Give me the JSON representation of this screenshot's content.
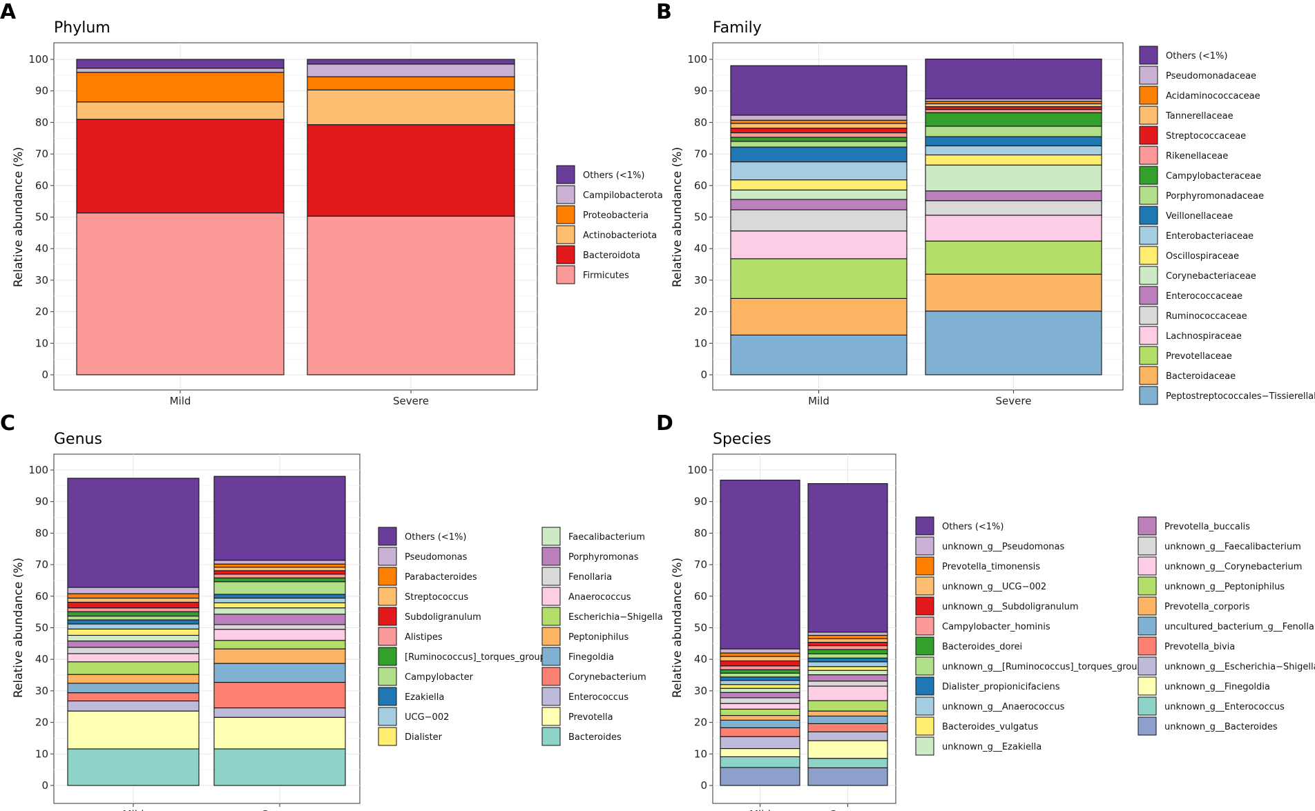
{
  "chart_data": [
    {
      "letter": "A",
      "title": "Phylum",
      "type": "bar",
      "stacked": true,
      "ylabel": "Relative abundance (%)",
      "xlabel": "",
      "ylim": [
        0,
        100
      ],
      "yticks": [
        0,
        10,
        20,
        30,
        40,
        50,
        60,
        70,
        80,
        90,
        100
      ],
      "categories": [
        "Mild",
        "Severe"
      ],
      "legend_columns": 1,
      "series": [
        {
          "name": "Firmicutes",
          "color": "#FB9A99",
          "values": [
            51.3,
            50.3
          ]
        },
        {
          "name": "Bacteroidota",
          "color": "#E31A1C",
          "values": [
            29.7,
            29.0
          ]
        },
        {
          "name": "Actinobacteriota",
          "color": "#FDBF6F",
          "values": [
            5.5,
            11.0
          ]
        },
        {
          "name": "Proteobacteria",
          "color": "#FF7F00",
          "values": [
            9.4,
            4.2
          ]
        },
        {
          "name": "Campilobacterota",
          "color": "#CAB2D6",
          "values": [
            1.3,
            4.0
          ]
        },
        {
          "name": "Others (<1%)",
          "color": "#6A3D9A",
          "values": [
            2.8,
            1.5
          ]
        }
      ]
    },
    {
      "letter": "B",
      "title": "Family",
      "type": "bar",
      "stacked": true,
      "ylabel": "Relative abundance (%)",
      "xlabel": "",
      "ylim": [
        0,
        100
      ],
      "yticks": [
        0,
        10,
        20,
        30,
        40,
        50,
        60,
        70,
        80,
        90,
        100
      ],
      "categories": [
        "Mild",
        "Severe"
      ],
      "legend_columns": 1,
      "series": [
        {
          "name": "Peptostreptococcales−Tissierellales",
          "color": "#80B1D3",
          "values": [
            12.6,
            20.2
          ]
        },
        {
          "name": "Bacteroidaceae",
          "color": "#FDB462",
          "values": [
            11.6,
            11.7
          ]
        },
        {
          "name": "Prevotellaceae",
          "color": "#B3DE69",
          "values": [
            12.6,
            10.5
          ]
        },
        {
          "name": "Lachnospiraceae",
          "color": "#FCCDE5",
          "values": [
            8.8,
            8.2
          ]
        },
        {
          "name": "Ruminococcaceae",
          "color": "#D9D9D9",
          "values": [
            6.7,
            4.6
          ]
        },
        {
          "name": "Enterococcaceae",
          "color": "#BC80BD",
          "values": [
            3.3,
            3.1
          ]
        },
        {
          "name": "Corynebacteriaceae",
          "color": "#CCEBC5",
          "values": [
            3.0,
            8.2
          ]
        },
        {
          "name": "Oscillospiraceae",
          "color": "#FFED6F",
          "values": [
            3.2,
            3.2
          ]
        },
        {
          "name": "Enterobacteriaceae",
          "color": "#A6CEE3",
          "values": [
            5.7,
            2.9
          ]
        },
        {
          "name": "Veillonellaceae",
          "color": "#1F78B4",
          "values": [
            4.7,
            2.9
          ]
        },
        {
          "name": "Porphyromonadaceae",
          "color": "#B2DF8A",
          "values": [
            1.8,
            3.3
          ]
        },
        {
          "name": "Campylobacteraceae",
          "color": "#33A02C",
          "values": [
            1.3,
            4.3
          ]
        },
        {
          "name": "Rikenellaceae",
          "color": "#FB9A99",
          "values": [
            1.4,
            1.0
          ]
        },
        {
          "name": "Streptococcaceae",
          "color": "#E31A1C",
          "values": [
            1.5,
            0.9
          ]
        },
        {
          "name": "Tannerellaceae",
          "color": "#FDBF6F",
          "values": [
            1.5,
            0.9
          ]
        },
        {
          "name": "Acidaminococcaceae",
          "color": "#FF7F00",
          "values": [
            1.0,
            0.8
          ]
        },
        {
          "name": "Pseudomonadaceae",
          "color": "#CAB2D6",
          "values": [
            1.6,
            0.8
          ]
        },
        {
          "name": "Others (<1%)",
          "color": "#6A3D9A",
          "values": [
            15.7,
            12.6
          ]
        }
      ]
    },
    {
      "letter": "C",
      "title": "Genus",
      "type": "bar",
      "stacked": true,
      "ylabel": "Relative abundance (%)",
      "xlabel": "",
      "ylim": [
        0,
        100
      ],
      "yticks": [
        0,
        10,
        20,
        30,
        40,
        50,
        60,
        70,
        80,
        90,
        100
      ],
      "categories": [
        "Mild",
        "Severe"
      ],
      "legend_columns": 2,
      "series": [
        {
          "name": "Bacteroides",
          "color": "#8DD3C7",
          "values": [
            11.6,
            11.6
          ]
        },
        {
          "name": "Prevotella",
          "color": "#FFFFB3",
          "values": [
            12.0,
            10.0
          ]
        },
        {
          "name": "Enterococcus",
          "color": "#BEBADA",
          "values": [
            3.2,
            3.0
          ]
        },
        {
          "name": "Corynebacterium",
          "color": "#FB8072",
          "values": [
            2.6,
            8.1
          ]
        },
        {
          "name": "Finegoldia",
          "color": "#80B1D3",
          "values": [
            3.0,
            6.0
          ]
        },
        {
          "name": "Peptoniphilus",
          "color": "#FDB462",
          "values": [
            2.8,
            4.6
          ]
        },
        {
          "name": "Escherichia−Shigella",
          "color": "#B3DE69",
          "values": [
            4.0,
            2.7
          ]
        },
        {
          "name": "Anaerococcus",
          "color": "#FCCDE5",
          "values": [
            2.6,
            3.5
          ]
        },
        {
          "name": "Fenollaria",
          "color": "#D9D9D9",
          "values": [
            2.0,
            1.5
          ]
        },
        {
          "name": "Porphyromonas",
          "color": "#BC80BD",
          "values": [
            2.0,
            3.3
          ]
        },
        {
          "name": "Faecalibacterium",
          "color": "#CCEBC5",
          "values": [
            1.8,
            2.0
          ]
        },
        {
          "name": "Dialister",
          "color": "#FFED6F",
          "values": [
            2.0,
            1.6
          ]
        },
        {
          "name": "UCG−002",
          "color": "#A6CEE3",
          "values": [
            1.6,
            1.5
          ]
        },
        {
          "name": "Ezakiella",
          "color": "#1F78B4",
          "values": [
            1.3,
            1.2
          ]
        },
        {
          "name": "Campylobacter",
          "color": "#B2DF8A",
          "values": [
            1.2,
            4.0
          ]
        },
        {
          "name": "[Ruminococcus]_torques_group",
          "color": "#33A02C",
          "values": [
            1.4,
            1.2
          ]
        },
        {
          "name": "Alistipes",
          "color": "#FB9A99",
          "values": [
            1.2,
            1.2
          ]
        },
        {
          "name": "Subdoligranulum",
          "color": "#E31A1C",
          "values": [
            1.8,
            1.1
          ]
        },
        {
          "name": "Streptococcus",
          "color": "#FDBF6F",
          "values": [
            1.3,
            1.1
          ]
        },
        {
          "name": "Parabacteroides",
          "color": "#FF7F00",
          "values": [
            1.4,
            1.0
          ]
        },
        {
          "name": "Pseudomonas",
          "color": "#CAB2D6",
          "values": [
            2.0,
            1.2
          ]
        },
        {
          "name": "Others (<1%)",
          "color": "#6A3D9A",
          "values": [
            34.6,
            26.6
          ]
        }
      ]
    },
    {
      "letter": "D",
      "title": "Species",
      "type": "bar",
      "stacked": true,
      "ylabel": "Relative abundance (%)",
      "xlabel": "",
      "ylim": [
        0,
        100
      ],
      "yticks": [
        0,
        10,
        20,
        30,
        40,
        50,
        60,
        70,
        80,
        90,
        100
      ],
      "categories": [
        "Mild",
        "Severe"
      ],
      "legend_columns": 2,
      "series": [
        {
          "name": "unknown_g__Bacteroides",
          "color": "#8DA0CB",
          "values": [
            5.7,
            5.6
          ]
        },
        {
          "name": "unknown_g__Enterococcus",
          "color": "#8DD3C7",
          "values": [
            3.4,
            3.0
          ]
        },
        {
          "name": "unknown_g__Finegoldia",
          "color": "#FFFFB3",
          "values": [
            2.6,
            5.6
          ]
        },
        {
          "name": "unknown_g__Escherichia−Shigella",
          "color": "#BEBADA",
          "values": [
            3.8,
            2.8
          ]
        },
        {
          "name": "Prevotella_bivia",
          "color": "#FB8072",
          "values": [
            2.8,
            2.6
          ]
        },
        {
          "name": "uncultured_bacterium_g__Fenollaria",
          "color": "#80B1D3",
          "values": [
            2.4,
            2.4
          ]
        },
        {
          "name": "Prevotella_corporis",
          "color": "#FDB462",
          "values": [
            1.5,
            1.6
          ]
        },
        {
          "name": "unknown_g__Peptoniphilus",
          "color": "#B3DE69",
          "values": [
            2.0,
            3.3
          ]
        },
        {
          "name": "unknown_g__Corynebacterium",
          "color": "#FCCDE5",
          "values": [
            1.8,
            4.6
          ]
        },
        {
          "name": "unknown_g__Faecalibacterium",
          "color": "#D9D9D9",
          "values": [
            1.8,
            1.6
          ]
        },
        {
          "name": "Prevotella_buccalis",
          "color": "#BC80BD",
          "values": [
            1.7,
            2.0
          ]
        },
        {
          "name": "unknown_g__Ezakiella",
          "color": "#CCEBC5",
          "values": [
            1.3,
            1.4
          ]
        },
        {
          "name": "Bacteroides_vulgatus",
          "color": "#FFED6F",
          "values": [
            1.2,
            1.2
          ]
        },
        {
          "name": "unknown_g__Anaerococcus",
          "color": "#A6CEE3",
          "values": [
            1.3,
            1.5
          ]
        },
        {
          "name": "Dialister_propionicifaciens",
          "color": "#1F78B4",
          "values": [
            1.1,
            1.2
          ]
        },
        {
          "name": "unknown_g__[Ruminococcus]_torques_group",
          "color": "#B2DF8A",
          "values": [
            1.2,
            1.3
          ]
        },
        {
          "name": "Bacteroides_dorei",
          "color": "#33A02C",
          "values": [
            1.1,
            1.4
          ]
        },
        {
          "name": "Campylobacter_hominis",
          "color": "#FB9A99",
          "values": [
            1.2,
            1.2
          ]
        },
        {
          "name": "unknown_g__Subdoligranulum",
          "color": "#E31A1C",
          "values": [
            1.6,
            1.1
          ]
        },
        {
          "name": "unknown_g__UCG−002",
          "color": "#FDBF6F",
          "values": [
            1.4,
            1.1
          ]
        },
        {
          "name": "Prevotella_timonensis",
          "color": "#FF7F00",
          "values": [
            1.1,
            1.1
          ]
        },
        {
          "name": "unknown_g__Pseudomonas",
          "color": "#CAB2D6",
          "values": [
            1.3,
            1.0
          ]
        },
        {
          "name": "Others (<1%)",
          "color": "#6A3D9A",
          "values": [
            53.5,
            47.1
          ]
        }
      ]
    }
  ]
}
